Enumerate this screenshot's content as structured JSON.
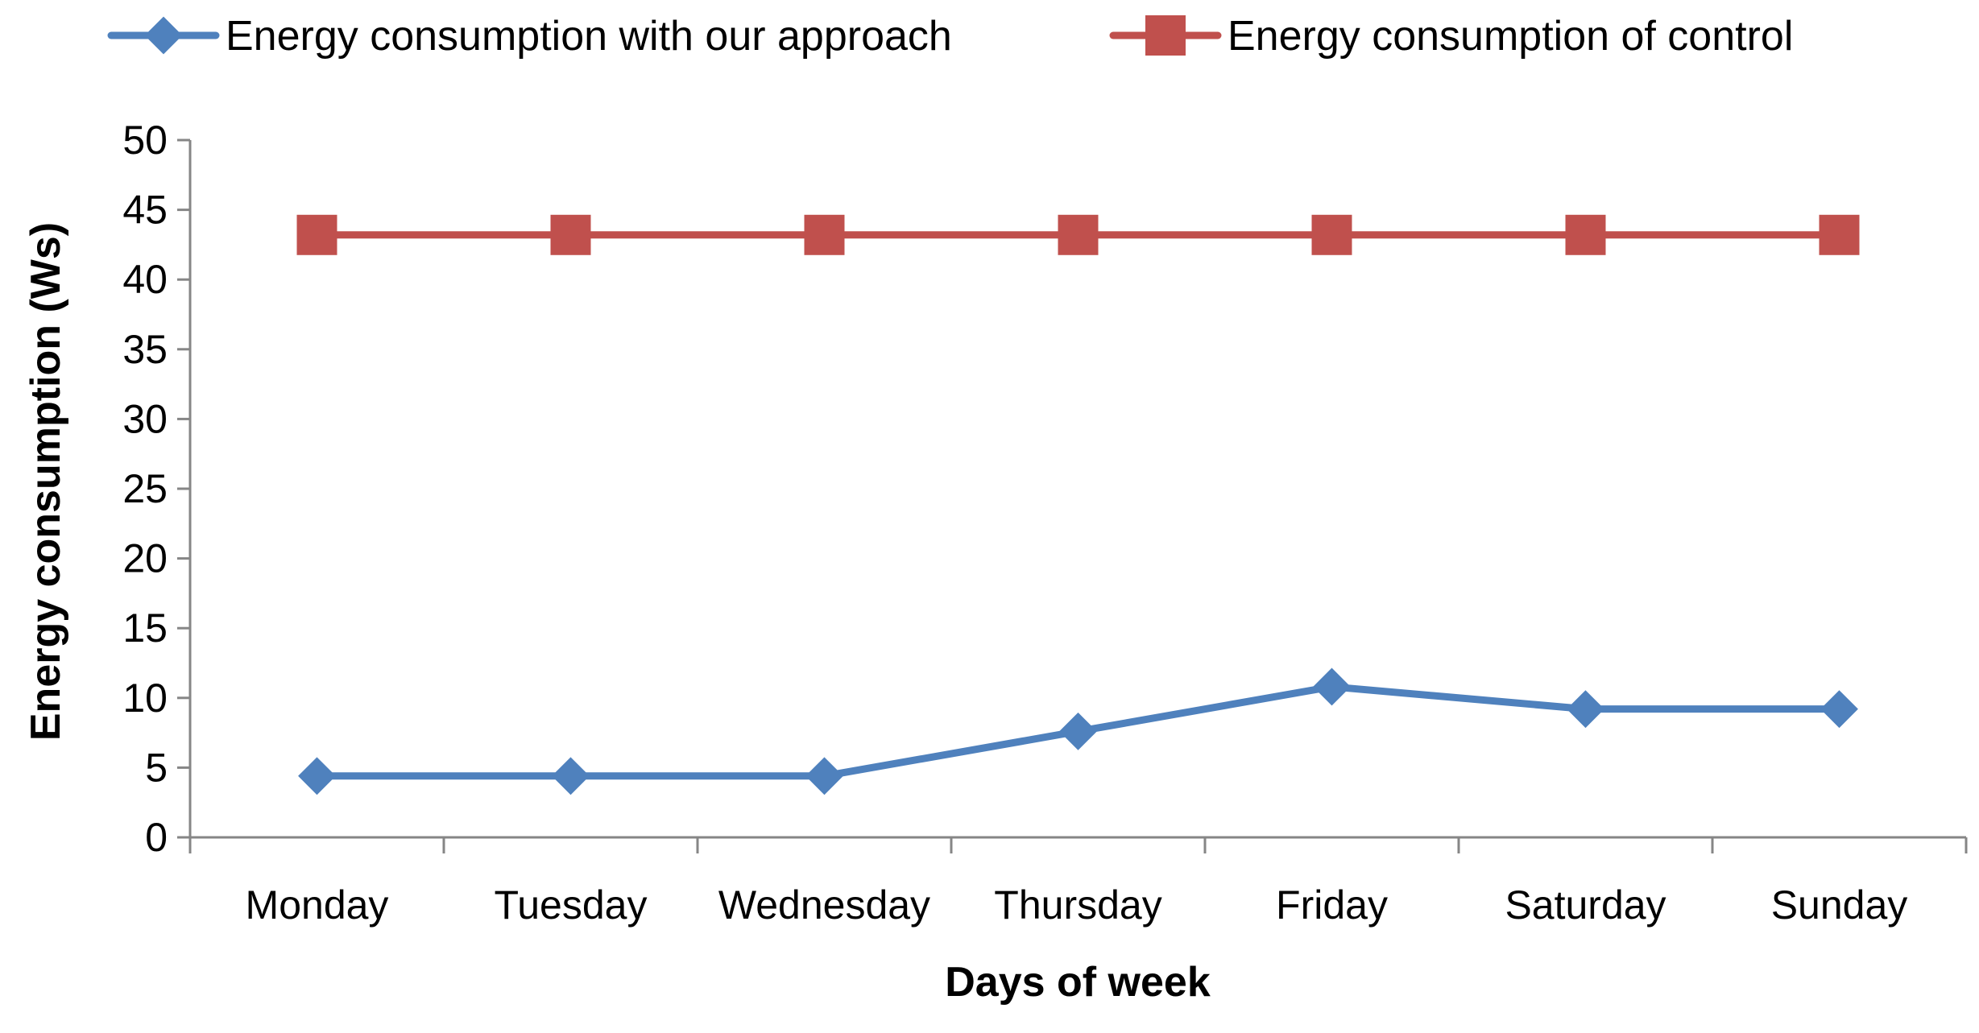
{
  "chart_data": {
    "type": "line",
    "title": "",
    "xlabel": "Days of week",
    "ylabel": "Energy consumption (Ws)",
    "categories": [
      "Monday",
      "Tuesday",
      "Wednesday",
      "Thursday",
      "Friday",
      "Saturday",
      "Sunday"
    ],
    "ylim": [
      0,
      50
    ],
    "yticks": [
      0,
      5,
      10,
      15,
      20,
      25,
      30,
      35,
      40,
      45,
      50
    ],
    "grid": false,
    "legend_position": "top",
    "series": [
      {
        "name": "Energy consumption with our approach",
        "marker": "diamond",
        "color": "#4F81BD",
        "values": [
          4.4,
          4.4,
          4.4,
          7.6,
          10.8,
          9.2,
          9.2
        ]
      },
      {
        "name": "Energy consumption of control",
        "marker": "square",
        "color": "#C0504D",
        "values": [
          43.2,
          43.2,
          43.2,
          43.2,
          43.2,
          43.2,
          43.2
        ]
      }
    ]
  }
}
